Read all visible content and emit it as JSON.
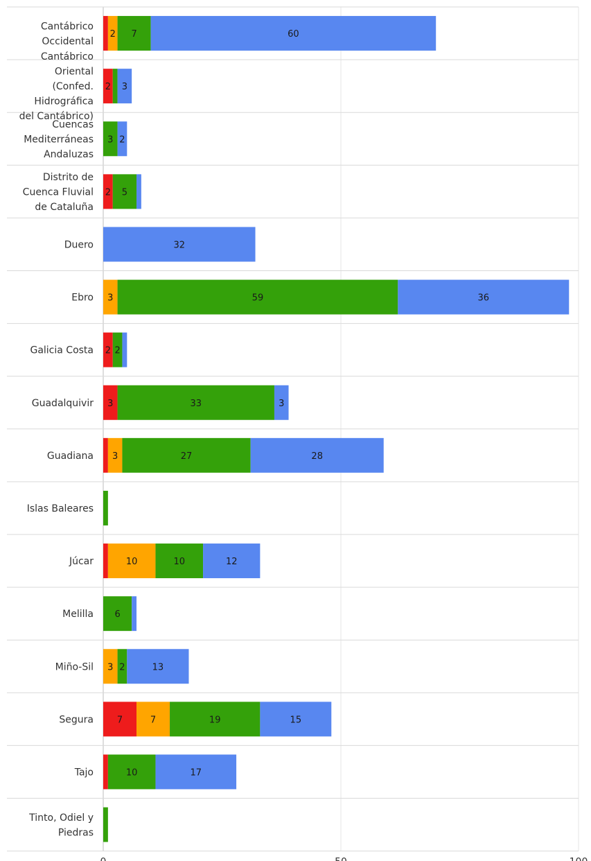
{
  "chart_data": {
    "type": "bar",
    "orientation": "horizontal",
    "stacked": true,
    "categories": [
      "Cantábrico Occidental",
      "Cantábrico Oriental (Confed. Hidrográfica del Cantábrico)",
      "Cuencas Mediterráneas Andaluzas",
      "Distrito de Cuenca Fluvial de Cataluña",
      "Duero",
      "Ebro",
      "Galicia Costa",
      "Guadalquivir",
      "Guadiana",
      "Islas Baleares",
      "Júcar",
      "Melilla",
      "Miño-Sil",
      "Segura",
      "Tajo",
      "Tinto, Odiel y Piedras"
    ],
    "category_label_lines": [
      [
        "Cantábrico",
        "Occidental"
      ],
      [
        "Cantábrico",
        "Oriental",
        "(Confed.",
        "Hidrográfica",
        "del Cantábrico)"
      ],
      [
        "Cuencas",
        "Mediterráneas",
        "Andaluzas"
      ],
      [
        "Distrito de",
        "Cuenca Fluvial",
        "de Cataluña"
      ],
      [
        "Duero"
      ],
      [
        "Ebro"
      ],
      [
        "Galicia Costa"
      ],
      [
        "Guadalquivir"
      ],
      [
        "Guadiana"
      ],
      [
        "Islas Baleares"
      ],
      [
        "Júcar"
      ],
      [
        "Melilla"
      ],
      [
        "Miño-Sil"
      ],
      [
        "Segura"
      ],
      [
        "Tajo"
      ],
      [
        "Tinto, Odiel y",
        "Piedras"
      ]
    ],
    "series": [
      {
        "color": "#ee1c1c",
        "values": [
          1,
          2,
          0,
          2,
          0,
          0,
          2,
          3,
          1,
          0,
          1,
          0,
          0,
          7,
          1,
          0
        ]
      },
      {
        "color": "#ffa500",
        "values": [
          2,
          0,
          0,
          0,
          0,
          3,
          0,
          0,
          3,
          0,
          10,
          0,
          3,
          7,
          0,
          0
        ]
      },
      {
        "color": "#34a10a",
        "values": [
          7,
          1,
          3,
          5,
          0,
          59,
          2,
          33,
          27,
          1,
          10,
          6,
          2,
          19,
          10,
          1
        ]
      },
      {
        "color": "#5887f0",
        "values": [
          60,
          3,
          2,
          1,
          32,
          36,
          1,
          3,
          28,
          0,
          12,
          1,
          13,
          15,
          17,
          0
        ]
      }
    ],
    "xlim": [
      0,
      100
    ],
    "xticks": [
      0,
      50,
      100
    ],
    "label_min_value": 2,
    "grid": true,
    "legend": "none",
    "title": "",
    "xlabel": "",
    "ylabel": ""
  }
}
